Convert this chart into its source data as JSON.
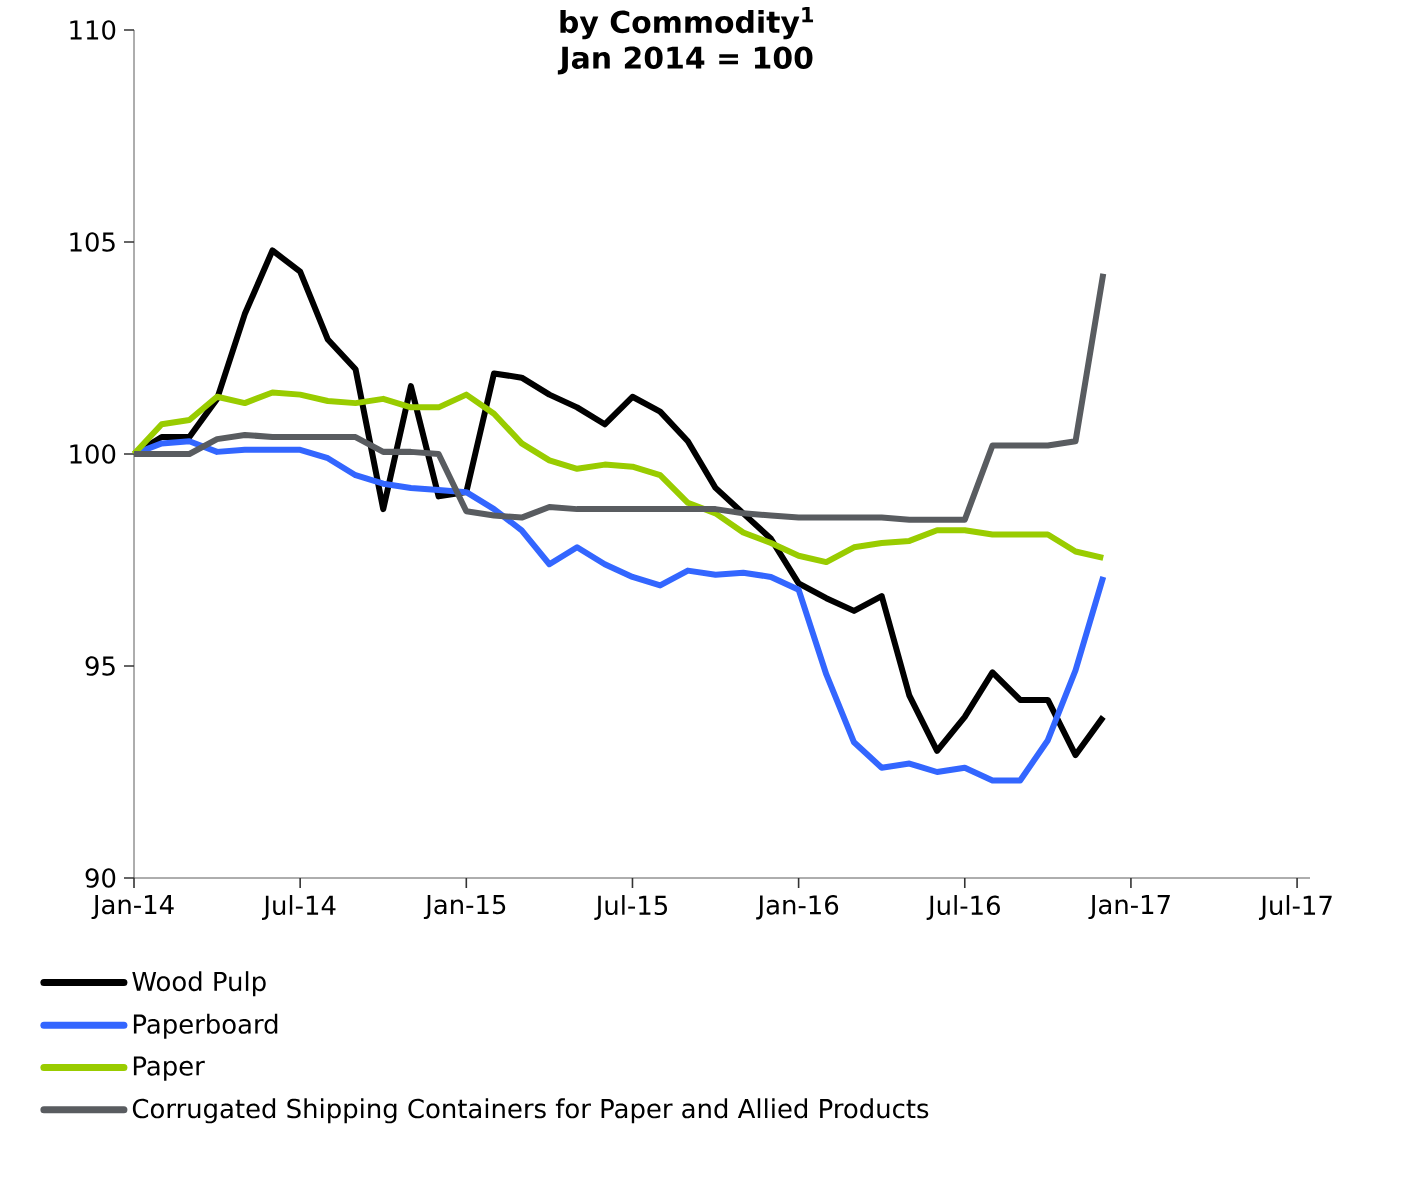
{
  "chart_data": {
    "type": "line",
    "title": "by Commodity$^{1}$",
    "subtitle": "Jan 2014 = 100",
    "x": [
      "2014-01",
      "2014-02",
      "2014-03",
      "2014-04",
      "2014-05",
      "2014-06",
      "2014-07",
      "2014-08",
      "2014-09",
      "2014-10",
      "2014-11",
      "2014-12",
      "2015-01",
      "2015-02",
      "2015-03",
      "2015-04",
      "2015-05",
      "2015-06",
      "2015-07",
      "2015-08",
      "2015-09",
      "2015-10",
      "2015-11",
      "2015-12",
      "2016-01",
      "2016-02",
      "2016-03",
      "2016-04",
      "2016-05",
      "2016-06",
      "2016-07",
      "2016-08",
      "2016-09",
      "2016-10",
      "2016-11",
      "2016-12"
    ],
    "series": [
      {
        "name": "Wood Pulp",
        "color": "#000000",
        "values": [
          100,
          100.4,
          100.4,
          101.3,
          103.3,
          104.8,
          104.3,
          102.7,
          102.0,
          98.7,
          101.6,
          99.0,
          99.1,
          101.9,
          101.8,
          101.4,
          101.1,
          100.7,
          101.35,
          101.0,
          100.3,
          99.2,
          98.6,
          98.0,
          96.95,
          96.6,
          96.3,
          96.65,
          94.3,
          93.0,
          93.8,
          94.85,
          94.2,
          94.2,
          92.9,
          93.8
        ]
      },
      {
        "name": "Paperboard",
        "color": "#3366ff",
        "values": [
          100,
          100.25,
          100.3,
          100.05,
          100.1,
          100.1,
          100.1,
          99.9,
          99.5,
          99.3,
          99.2,
          99.15,
          99.1,
          98.7,
          98.2,
          97.4,
          97.8,
          97.4,
          97.1,
          96.9,
          97.25,
          97.15,
          97.2,
          97.1,
          96.8,
          94.8,
          93.2,
          92.6,
          92.7,
          92.5,
          92.6,
          92.3,
          92.3,
          93.25,
          94.9,
          97.1
        ]
      },
      {
        "name": "Paper",
        "color": "#99cc00",
        "values": [
          100,
          100.7,
          100.8,
          101.35,
          101.2,
          101.45,
          101.4,
          101.25,
          101.2,
          101.3,
          101.1,
          101.1,
          101.4,
          100.95,
          100.25,
          99.85,
          99.65,
          99.75,
          99.7,
          99.5,
          98.85,
          98.6,
          98.15,
          97.9,
          97.6,
          97.45,
          97.8,
          97.9,
          97.95,
          98.2,
          98.2,
          98.1,
          98.1,
          98.1,
          97.7,
          97.55
        ]
      },
      {
        "name": "Corrugated Shipping Containers for Paper and Allied Products",
        "color": "#595c60",
        "values": [
          100,
          100,
          100,
          100.35,
          100.45,
          100.4,
          100.4,
          100.4,
          100.4,
          100.05,
          100.05,
          100.0,
          98.65,
          98.55,
          98.5,
          98.75,
          98.7,
          98.7,
          98.7,
          98.7,
          98.7,
          98.7,
          98.6,
          98.55,
          98.5,
          98.5,
          98.5,
          98.5,
          98.45,
          98.45,
          98.45,
          100.2,
          100.2,
          100.2,
          100.3,
          104.25
        ]
      }
    ],
    "xlim": [
      "2014-01",
      "2017-07-15"
    ],
    "xticks": [
      {
        "value": "2014-01",
        "label": "Jan-14"
      },
      {
        "value": "2014-07",
        "label": "Jul-14"
      },
      {
        "value": "2015-01",
        "label": "Jan-15"
      },
      {
        "value": "2015-07",
        "label": "Jul-15"
      },
      {
        "value": "2016-01",
        "label": "Jan-16"
      },
      {
        "value": "2016-07",
        "label": "Jul-16"
      },
      {
        "value": "2017-01",
        "label": "Jan-17"
      },
      {
        "value": "2017-07",
        "label": "Jul-17"
      }
    ],
    "ylim": [
      90,
      110
    ],
    "yticks": [
      90,
      95,
      100,
      105,
      110
    ],
    "legend": "bottom"
  }
}
